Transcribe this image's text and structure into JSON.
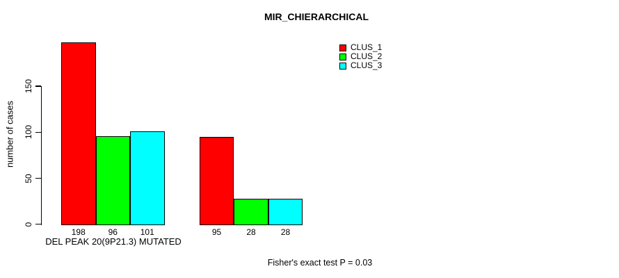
{
  "chart_data": {
    "type": "bar",
    "title": "MIR_CHIERARCHICAL",
    "xlabel": "DEL PEAK 20(9P21.3) MUTATED",
    "ylabel": "number of cases",
    "annotation": "Fisher's exact test P = 0.03",
    "categories": [
      "",
      ""
    ],
    "series": [
      {
        "name": "CLUS_1",
        "color": "#ff0000",
        "values": [
          198,
          95
        ]
      },
      {
        "name": "CLUS_2",
        "color": "#00ff00",
        "values": [
          96,
          28
        ]
      },
      {
        "name": "CLUS_3",
        "color": "#00ffff",
        "values": [
          101,
          28
        ]
      }
    ],
    "yticks": [
      0,
      50,
      100,
      150
    ],
    "ylim": [
      0,
      205
    ],
    "grid": false,
    "legend_position": "top-right",
    "bar_value_labels_shown": true,
    "bar_border_color": "#000000",
    "background_color": "#ffffff"
  }
}
